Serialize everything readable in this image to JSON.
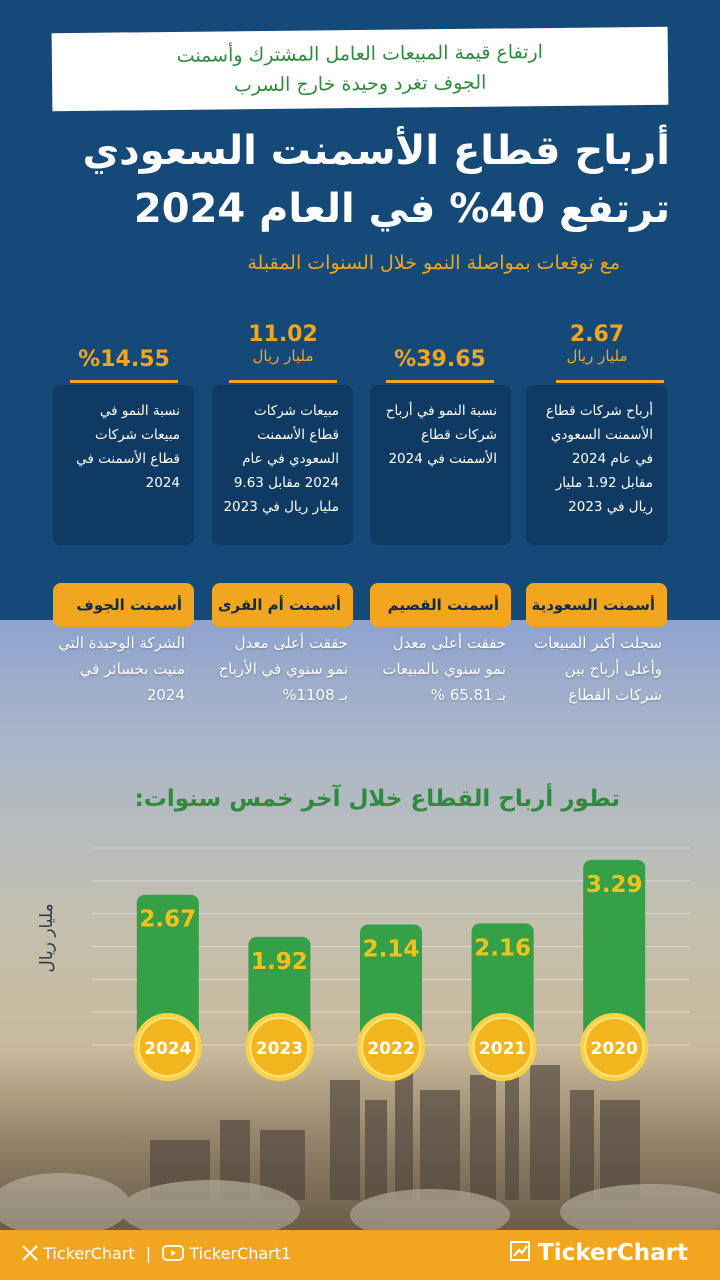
{
  "banner": {
    "line1": "ارتفاع قيمة المبيعات العامل المشترك وأسمنت",
    "line2": "الجوف تغرد وحيدة خارج السرب"
  },
  "title": {
    "line1": "أرباح قطاع الأسمنت السعودي",
    "line2": "ترتفع 40% في العام 2024"
  },
  "subtitle": "مع توقعات بمواصلة النمو خلال السنوات المقبلة",
  "stats": [
    {
      "value": "2.67",
      "unit": "مليار ريال",
      "desc": "أرباح شركات قطاع الأسمنت السعودي في عام 2024 مقابل 1.92 مليار ريال في 2023"
    },
    {
      "value": "%39.65",
      "unit": "",
      "desc": "نسبة النمو في أرباح شركات قطاع الأسمنت في 2024"
    },
    {
      "value": "11.02",
      "unit": "مليار ريال",
      "desc": "مبيعات شركات قطاع الأسمنت السعودي في عام 2024 مقابل 9.63 مليار ريال في 2023"
    },
    {
      "value": "%14.55",
      "unit": "",
      "desc": "نسبة النمو في مبيعات شركات قطاع الأسمنت في 2024"
    }
  ],
  "companies": [
    {
      "name": "أسمنت السعودية",
      "desc": "سجلت أكبر المبيعات وأعلى أرباح بين شركات القطاع"
    },
    {
      "name": "أسمنت القصيم",
      "desc": "حققت أعلى معدل نمو سنوي بالمبيعات بـ 65.81 %"
    },
    {
      "name": "أسمنت أم القرى",
      "desc": "حققت أعلى معدل نمو سنوي في الأرباح بـ 1108%"
    },
    {
      "name": "أسمنت الجوف",
      "desc": "الشركة الوحيدة التي منيت بخسائر في 2024"
    }
  ],
  "chart_data": {
    "type": "bar",
    "title": "تطور أرباح القطاع خلال آخر خمس سنوات:",
    "ylabel": "مليار ريال",
    "categories": [
      "2020",
      "2021",
      "2022",
      "2023",
      "2024"
    ],
    "values": [
      3.29,
      2.16,
      2.14,
      1.92,
      2.67
    ],
    "ylim": [
      0,
      3.5
    ],
    "x_direction": "right-to-left",
    "grid": true,
    "colors": {
      "bar": "#35a047",
      "label": "#f2c21a",
      "badge": "#f2b51e"
    }
  },
  "footer": {
    "x_handle": "TickerChart",
    "youtube_handle": "TickerChart1",
    "brand": "TickerChart"
  },
  "colors": {
    "navy": "#154a78",
    "card": "#0e3a63",
    "orange": "#f2a51e",
    "green": "#2e8b3e"
  }
}
